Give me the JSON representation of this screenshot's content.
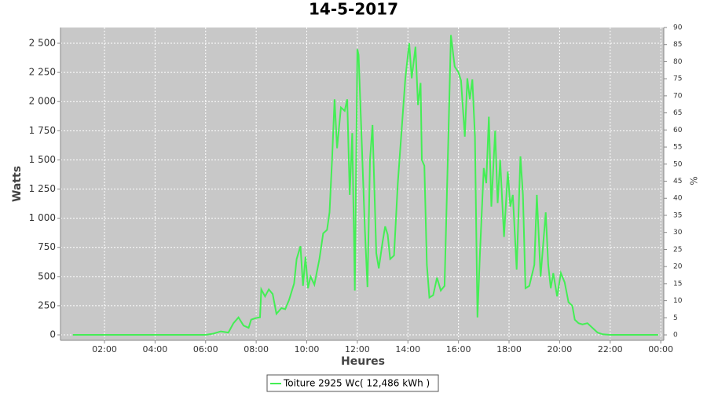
{
  "chart_data": {
    "type": "line",
    "title": "14-5-2017",
    "x_label": "Heures",
    "y_label": "Watts",
    "y2_label": "%",
    "x": [
      0.75,
      2,
      4,
      6,
      6.3,
      6.6,
      6.9,
      7.1,
      7.3,
      7.5,
      7.7,
      7.8,
      8.0,
      8.15,
      8.2,
      8.35,
      8.5,
      8.65,
      8.8,
      9.0,
      9.15,
      9.3,
      9.5,
      9.6,
      9.75,
      9.85,
      9.95,
      10.05,
      10.15,
      10.3,
      10.5,
      10.65,
      10.8,
      10.9,
      11.0,
      11.1,
      11.2,
      11.35,
      11.5,
      11.6,
      11.7,
      11.8,
      11.9,
      12.0,
      12.05,
      12.15,
      12.3,
      12.4,
      12.5,
      12.6,
      12.75,
      12.85,
      13.0,
      13.1,
      13.2,
      13.3,
      13.45,
      13.6,
      13.75,
      13.9,
      14.05,
      14.15,
      14.3,
      14.4,
      14.5,
      14.55,
      14.65,
      14.75,
      14.85,
      15.0,
      15.15,
      15.3,
      15.45,
      15.6,
      15.7,
      15.85,
      16.0,
      16.1,
      16.25,
      16.35,
      16.45,
      16.55,
      16.65,
      16.75,
      16.85,
      17.0,
      17.1,
      17.2,
      17.3,
      17.45,
      17.55,
      17.65,
      17.8,
      17.95,
      18.05,
      18.15,
      18.3,
      18.45,
      18.55,
      18.65,
      18.8,
      19.0,
      19.1,
      19.25,
      19.35,
      19.45,
      19.55,
      19.65,
      19.75,
      19.9,
      20.05,
      20.2,
      20.35,
      20.5,
      20.6,
      20.75,
      20.9,
      21.1,
      21.3,
      21.5,
      21.7,
      22.0,
      23.9
    ],
    "series": [
      {
        "name": "Toiture 2925 Wc( 12,486 kWh )",
        "color": "#44ee55",
        "values": [
          0,
          0,
          0,
          0,
          10,
          30,
          20,
          100,
          150,
          80,
          60,
          130,
          145,
          150,
          390,
          330,
          390,
          350,
          180,
          230,
          220,
          300,
          440,
          650,
          760,
          420,
          670,
          400,
          500,
          430,
          650,
          870,
          900,
          1050,
          1500,
          2020,
          1600,
          1950,
          1920,
          2020,
          1200,
          1730,
          380,
          2450,
          2400,
          1800,
          900,
          410,
          1500,
          1800,
          700,
          570,
          800,
          930,
          860,
          650,
          680,
          1300,
          1750,
          2200,
          2500,
          2200,
          2470,
          1970,
          2160,
          1500,
          1450,
          600,
          320,
          340,
          490,
          380,
          420,
          1700,
          2570,
          2300,
          2250,
          2180,
          1700,
          2200,
          2020,
          2190,
          1700,
          150,
          700,
          1430,
          1300,
          1870,
          1100,
          1750,
          1130,
          1500,
          840,
          1400,
          1100,
          1200,
          560,
          1530,
          1200,
          400,
          420,
          600,
          1200,
          500,
          780,
          1050,
          600,
          400,
          530,
          330,
          530,
          450,
          280,
          250,
          130,
          100,
          90,
          100,
          60,
          20,
          5,
          0,
          0
        ]
      }
    ],
    "xlim": [
      0.26,
      24.12
    ],
    "xticks": [
      {
        "value": 2,
        "label": "02:00"
      },
      {
        "value": 4,
        "label": "04:00"
      },
      {
        "value": 6,
        "label": "06:00"
      },
      {
        "value": 8,
        "label": "08:00"
      },
      {
        "value": 10,
        "label": "10:00"
      },
      {
        "value": 12,
        "label": "12:00"
      },
      {
        "value": 14,
        "label": "14:00"
      },
      {
        "value": 16,
        "label": "16:00"
      },
      {
        "value": 18,
        "label": "18:00"
      },
      {
        "value": 20,
        "label": "20:00"
      },
      {
        "value": 22,
        "label": "22:00"
      },
      {
        "value": 24,
        "label": "00:00"
      }
    ],
    "ylim": [
      -47,
      2635
    ],
    "yticks": [
      0,
      250,
      500,
      750,
      {
        "value": 1000,
        "label": "1 000"
      },
      {
        "value": 1250,
        "label": "1 250"
      },
      {
        "value": 1500,
        "label": "1 500"
      },
      {
        "value": 1750,
        "label": "1 750"
      },
      {
        "value": 2000,
        "label": "2 000"
      },
      {
        "value": 2250,
        "label": "2 250"
      },
      {
        "value": 2500,
        "label": "2 500"
      }
    ],
    "y2lim": [
      -1.6,
      90
    ],
    "y2ticks": [
      0,
      5,
      10,
      15,
      20,
      25,
      30,
      35,
      40,
      45,
      50,
      55,
      60,
      65,
      70,
      75,
      80,
      85,
      90
    ],
    "grid": true,
    "legend": "bottom"
  }
}
